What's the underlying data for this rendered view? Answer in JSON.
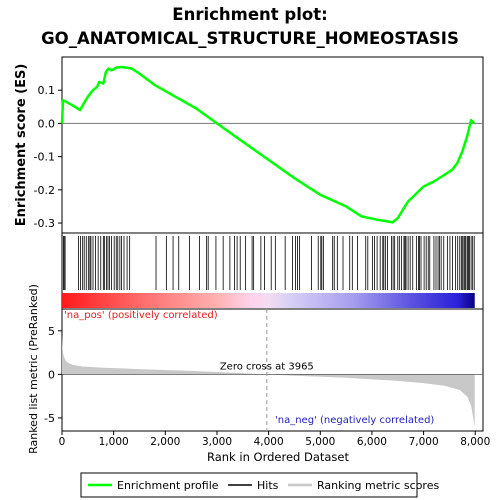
{
  "chart_data": {
    "type": "line",
    "title_line1": "Enrichment plot:",
    "title_line2": "GO_ANATOMICAL_STRUCTURE_HOMEOSTASIS",
    "es_panel": {
      "ylabel": "Enrichment score (ES)",
      "ylim": [
        -0.33,
        0.2
      ],
      "yticks": [
        0.1,
        0.0,
        -0.1,
        -0.2,
        -0.3
      ],
      "ytick_labels": [
        "0.1",
        "0.0",
        "-0.1",
        "-0.2",
        "-0.3"
      ],
      "series_name": "Enrichment profile",
      "line_color": "#00ff00",
      "points": [
        [
          0,
          0.0
        ],
        [
          20,
          0.07
        ],
        [
          200,
          0.055
        ],
        [
          350,
          0.04
        ],
        [
          420,
          0.06
        ],
        [
          500,
          0.08
        ],
        [
          600,
          0.1
        ],
        [
          680,
          0.11
        ],
        [
          720,
          0.125
        ],
        [
          800,
          0.12
        ],
        [
          850,
          0.155
        ],
        [
          900,
          0.165
        ],
        [
          950,
          0.16
        ],
        [
          1000,
          0.163
        ],
        [
          1050,
          0.168
        ],
        [
          1150,
          0.17
        ],
        [
          1250,
          0.168
        ],
        [
          1350,
          0.165
        ],
        [
          1500,
          0.15
        ],
        [
          1800,
          0.115
        ],
        [
          2200,
          0.08
        ],
        [
          2600,
          0.045
        ],
        [
          3000,
          0.0
        ],
        [
          3500,
          -0.055
        ],
        [
          4000,
          -0.11
        ],
        [
          4500,
          -0.165
        ],
        [
          5000,
          -0.215
        ],
        [
          5500,
          -0.25
        ],
        [
          5800,
          -0.28
        ],
        [
          6100,
          -0.29
        ],
        [
          6300,
          -0.295
        ],
        [
          6400,
          -0.298
        ],
        [
          6500,
          -0.285
        ],
        [
          6600,
          -0.26
        ],
        [
          6700,
          -0.235
        ],
        [
          6800,
          -0.22
        ],
        [
          6900,
          -0.205
        ],
        [
          7000,
          -0.19
        ],
        [
          7200,
          -0.175
        ],
        [
          7400,
          -0.155
        ],
        [
          7550,
          -0.14
        ],
        [
          7650,
          -0.12
        ],
        [
          7750,
          -0.085
        ],
        [
          7850,
          -0.035
        ],
        [
          7920,
          0.01
        ],
        [
          7980,
          0.0
        ]
      ]
    },
    "hits_panel": {
      "series_name": "Hits",
      "hit_ranks": [
        30,
        40,
        60,
        320,
        360,
        400,
        430,
        470,
        510,
        540,
        560,
        600,
        650,
        700,
        750,
        800,
        820,
        860,
        890,
        920,
        960,
        1010,
        1050,
        1080,
        1120,
        1150,
        1200,
        1260,
        1310,
        1820,
        2020,
        2150,
        2260,
        2470,
        2660,
        2800,
        2830,
        2980,
        3120,
        3250,
        3340,
        3390,
        3450,
        3550,
        3680,
        3710,
        3850,
        3920,
        4050,
        4130,
        4320,
        4460,
        4520,
        4560,
        4600,
        4830,
        4960,
        5010,
        5030,
        5060,
        5240,
        5270,
        5330,
        5440,
        5570,
        5620,
        5720,
        5880,
        5920,
        6010,
        6050,
        6100,
        6160,
        6210,
        6230,
        6260,
        6300,
        6380,
        6410,
        6440,
        6500,
        6530,
        6570,
        6620,
        6640,
        6660,
        6700,
        6740,
        6790,
        6860,
        6900,
        6920,
        6950,
        7010,
        7050,
        7090,
        7120,
        7200,
        7240,
        7280,
        7310,
        7340,
        7390,
        7460,
        7510,
        7560,
        7620,
        7660,
        7700,
        7730,
        7750,
        7780,
        7800,
        7820,
        7850,
        7870,
        7890,
        7920,
        7950,
        7980
      ]
    },
    "rank_panel": {
      "ylabel": "Ranked list metric (PreRanked)",
      "ylim": [
        -6.5,
        7.5
      ],
      "yticks": [
        5,
        0,
        -5
      ],
      "ytick_labels": [
        "5",
        "0",
        "-5"
      ],
      "series_name": "Ranking metric scores",
      "zero_cross_label": "Zero cross at 3965",
      "zero_cross_rank": 3965,
      "pos_label": "'na_pos' (positively correlated)",
      "neg_label": "'na_neg' (negatively correlated)",
      "points": [
        [
          0,
          4.6
        ],
        [
          10,
          3.0
        ],
        [
          30,
          2.2
        ],
        [
          60,
          1.7
        ],
        [
          100,
          1.4
        ],
        [
          200,
          1.1
        ],
        [
          400,
          0.9
        ],
        [
          800,
          0.75
        ],
        [
          1500,
          0.6
        ],
        [
          2500,
          0.4
        ],
        [
          3500,
          0.15
        ],
        [
          3965,
          0.0
        ],
        [
          4500,
          -0.15
        ],
        [
          5500,
          -0.4
        ],
        [
          6500,
          -0.75
        ],
        [
          7000,
          -1.0
        ],
        [
          7400,
          -1.3
        ],
        [
          7700,
          -1.8
        ],
        [
          7850,
          -2.6
        ],
        [
          7920,
          -3.6
        ],
        [
          7960,
          -5.0
        ],
        [
          7990,
          -6.0
        ]
      ]
    },
    "xlabel": "Rank in Ordered Dataset",
    "xlim": [
      0,
      8150
    ],
    "xticks": [
      0,
      1000,
      2000,
      3000,
      4000,
      5000,
      6000,
      7000,
      8000
    ],
    "xtick_labels": [
      "0",
      "1,000",
      "2,000",
      "3,000",
      "4,000",
      "5,000",
      "6,000",
      "7,000",
      "8,000"
    ],
    "max_rank": 7990,
    "legend": {
      "placement": "bottom",
      "items": [
        "Enrichment profile",
        "Hits",
        "Ranking metric scores"
      ],
      "colors": [
        "#00ff00",
        "#000000",
        "#c8c8c8"
      ]
    }
  }
}
